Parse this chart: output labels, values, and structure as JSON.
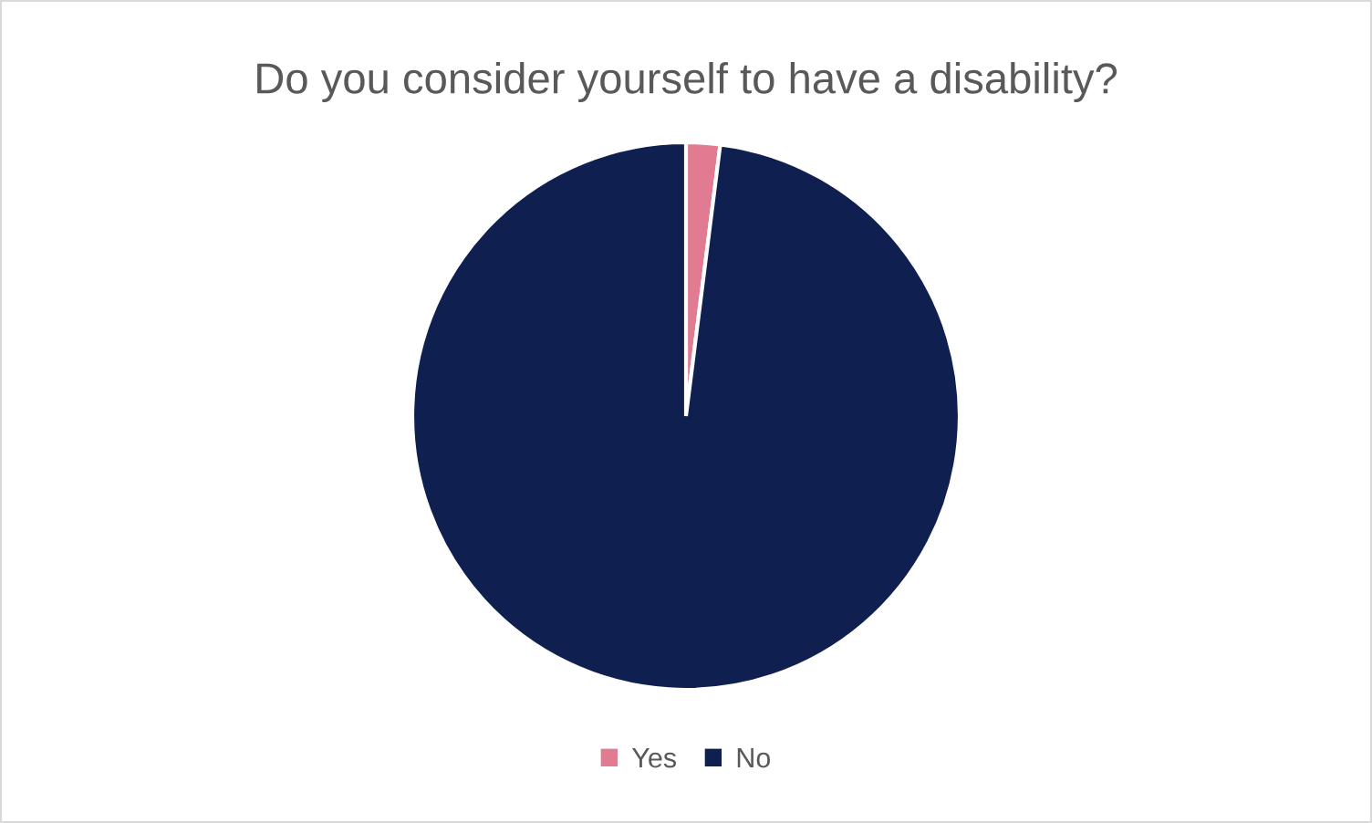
{
  "chart_data": {
    "type": "pie",
    "title": "Do you consider yourself to have a disability?",
    "categories": [
      "Yes",
      "No"
    ],
    "values": [
      2,
      98
    ],
    "colors": [
      "#e07b91",
      "#0e1f50"
    ],
    "legend": "bottom"
  }
}
